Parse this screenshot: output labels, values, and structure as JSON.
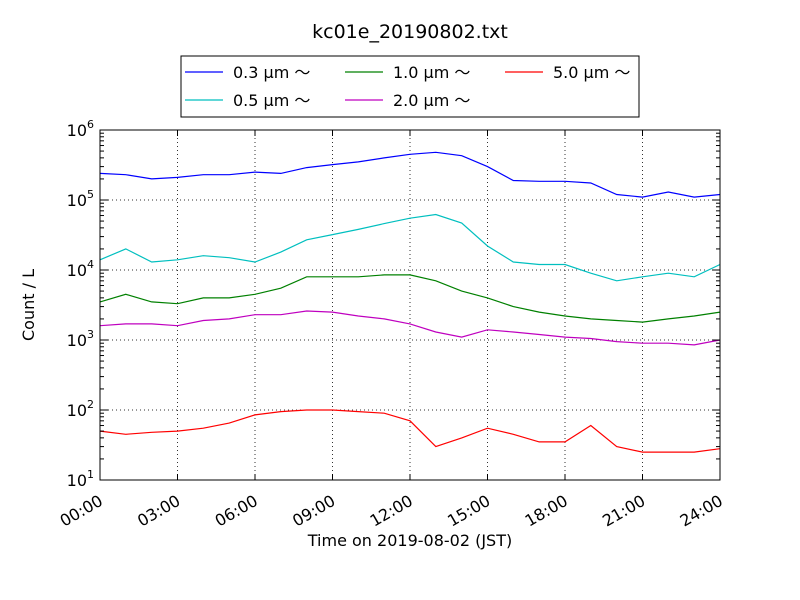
{
  "chart_data": {
    "type": "line",
    "title": "kc01e_20190802.txt",
    "xlabel": "Time on 2019-08-02 (JST)",
    "ylabel": "Count / L",
    "yscale": "log",
    "ylim": [
      10,
      1000000
    ],
    "xlim": [
      "00:00",
      "24:00"
    ],
    "x_ticks": [
      "00:00",
      "03:00",
      "06:00",
      "09:00",
      "12:00",
      "15:00",
      "18:00",
      "21:00",
      "24:00"
    ],
    "y_ticks": [
      {
        "value": 10,
        "base": "10",
        "exp": "1"
      },
      {
        "value": 100,
        "base": "10",
        "exp": "2"
      },
      {
        "value": 1000,
        "base": "10",
        "exp": "3"
      },
      {
        "value": 10000,
        "base": "10",
        "exp": "4"
      },
      {
        "value": 100000,
        "base": "10",
        "exp": "5"
      },
      {
        "value": 1000000,
        "base": "10",
        "exp": "6"
      }
    ],
    "grid": true,
    "legend_position": "top-center",
    "x_hours": [
      0,
      1,
      2,
      3,
      4,
      5,
      6,
      7,
      8,
      9,
      10,
      11,
      12,
      13,
      14,
      15,
      16,
      17,
      18,
      19,
      20,
      21,
      22,
      23,
      24
    ],
    "series": [
      {
        "name": "0.3 μm ～",
        "color": "#0000ff",
        "values": [
          240000,
          230000,
          200000,
          210000,
          230000,
          230000,
          250000,
          240000,
          290000,
          320000,
          350000,
          400000,
          450000,
          480000,
          430000,
          300000,
          190000,
          185000,
          185000,
          175000,
          120000,
          110000,
          130000,
          110000,
          120000
        ]
      },
      {
        "name": "0.5 μm ～",
        "color": "#00bfbf",
        "values": [
          14000,
          20000,
          13000,
          14000,
          16000,
          15000,
          13000,
          18000,
          27000,
          32000,
          38000,
          46000,
          55000,
          62000,
          47000,
          22000,
          13000,
          12000,
          12000,
          9000,
          7000,
          8000,
          9000,
          8000,
          12000
        ]
      },
      {
        "name": "1.0 μm ～",
        "color": "#008000",
        "values": [
          3500,
          4500,
          3500,
          3300,
          4000,
          4000,
          4500,
          5500,
          8000,
          8000,
          8000,
          8500,
          8500,
          7000,
          5000,
          4000,
          3000,
          2500,
          2200,
          2000,
          1900,
          1800,
          2000,
          2200,
          2500
        ]
      },
      {
        "name": "2.0 μm ～",
        "color": "#bf00bf",
        "values": [
          1600,
          1700,
          1700,
          1600,
          1900,
          2000,
          2300,
          2300,
          2600,
          2500,
          2200,
          2000,
          1700,
          1300,
          1100,
          1400,
          1300,
          1200,
          1100,
          1050,
          950,
          900,
          900,
          850,
          1000
        ]
      },
      {
        "name": "5.0 μm ～",
        "color": "#ff0000",
        "values": [
          50,
          45,
          48,
          50,
          55,
          65,
          85,
          95,
          100,
          100,
          95,
          90,
          70,
          30,
          40,
          55,
          45,
          35,
          35,
          60,
          30,
          25,
          25,
          25,
          28
        ]
      }
    ]
  }
}
